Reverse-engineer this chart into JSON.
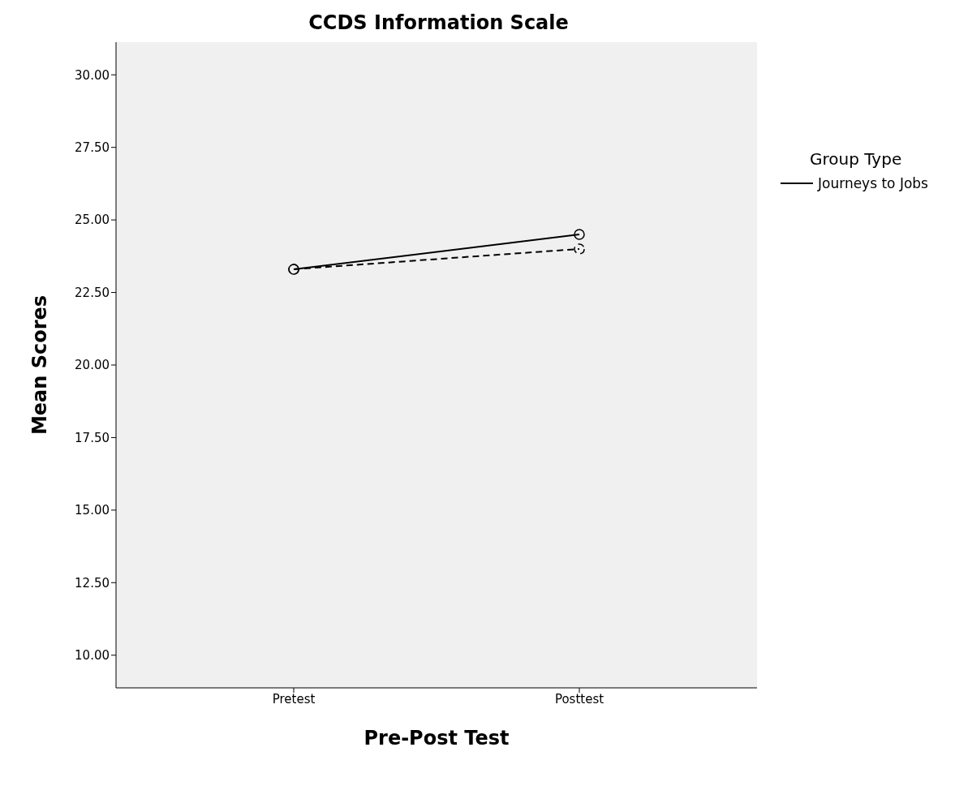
{
  "chart_data": {
    "type": "line",
    "title": "CCDS Information Scale",
    "xlabel": "Pre-Post Test",
    "ylabel": "Mean Scores",
    "legend_title": "Group Type",
    "categories": [
      "Pretest",
      "Posttest"
    ],
    "series": [
      {
        "color": "#000000",
        "line_style": "dashed",
        "values": [
          23.3,
          24.0
        ]
      },
      {
        "name": "Journeys to Jobs",
        "color": "#000000",
        "line_style": "solid",
        "values": [
          23.3,
          24.5
        ]
      }
    ],
    "ylim": [
      8.875,
      31.125
    ],
    "yticks": [
      {
        "value": 10,
        "label": "10.00"
      },
      {
        "value": 12.5,
        "label": "12.50"
      },
      {
        "value": 15,
        "label": "15.00"
      },
      {
        "value": 17.5,
        "label": "17.50"
      },
      {
        "value": 20,
        "label": "20.00"
      },
      {
        "value": 22.5,
        "label": "22.50"
      },
      {
        "value": 25,
        "label": "25.00"
      },
      {
        "value": 27.5,
        "label": "27.50"
      },
      {
        "value": 30,
        "label": "30.00"
      }
    ],
    "marker": "circle",
    "grid": false,
    "legend": "right"
  }
}
